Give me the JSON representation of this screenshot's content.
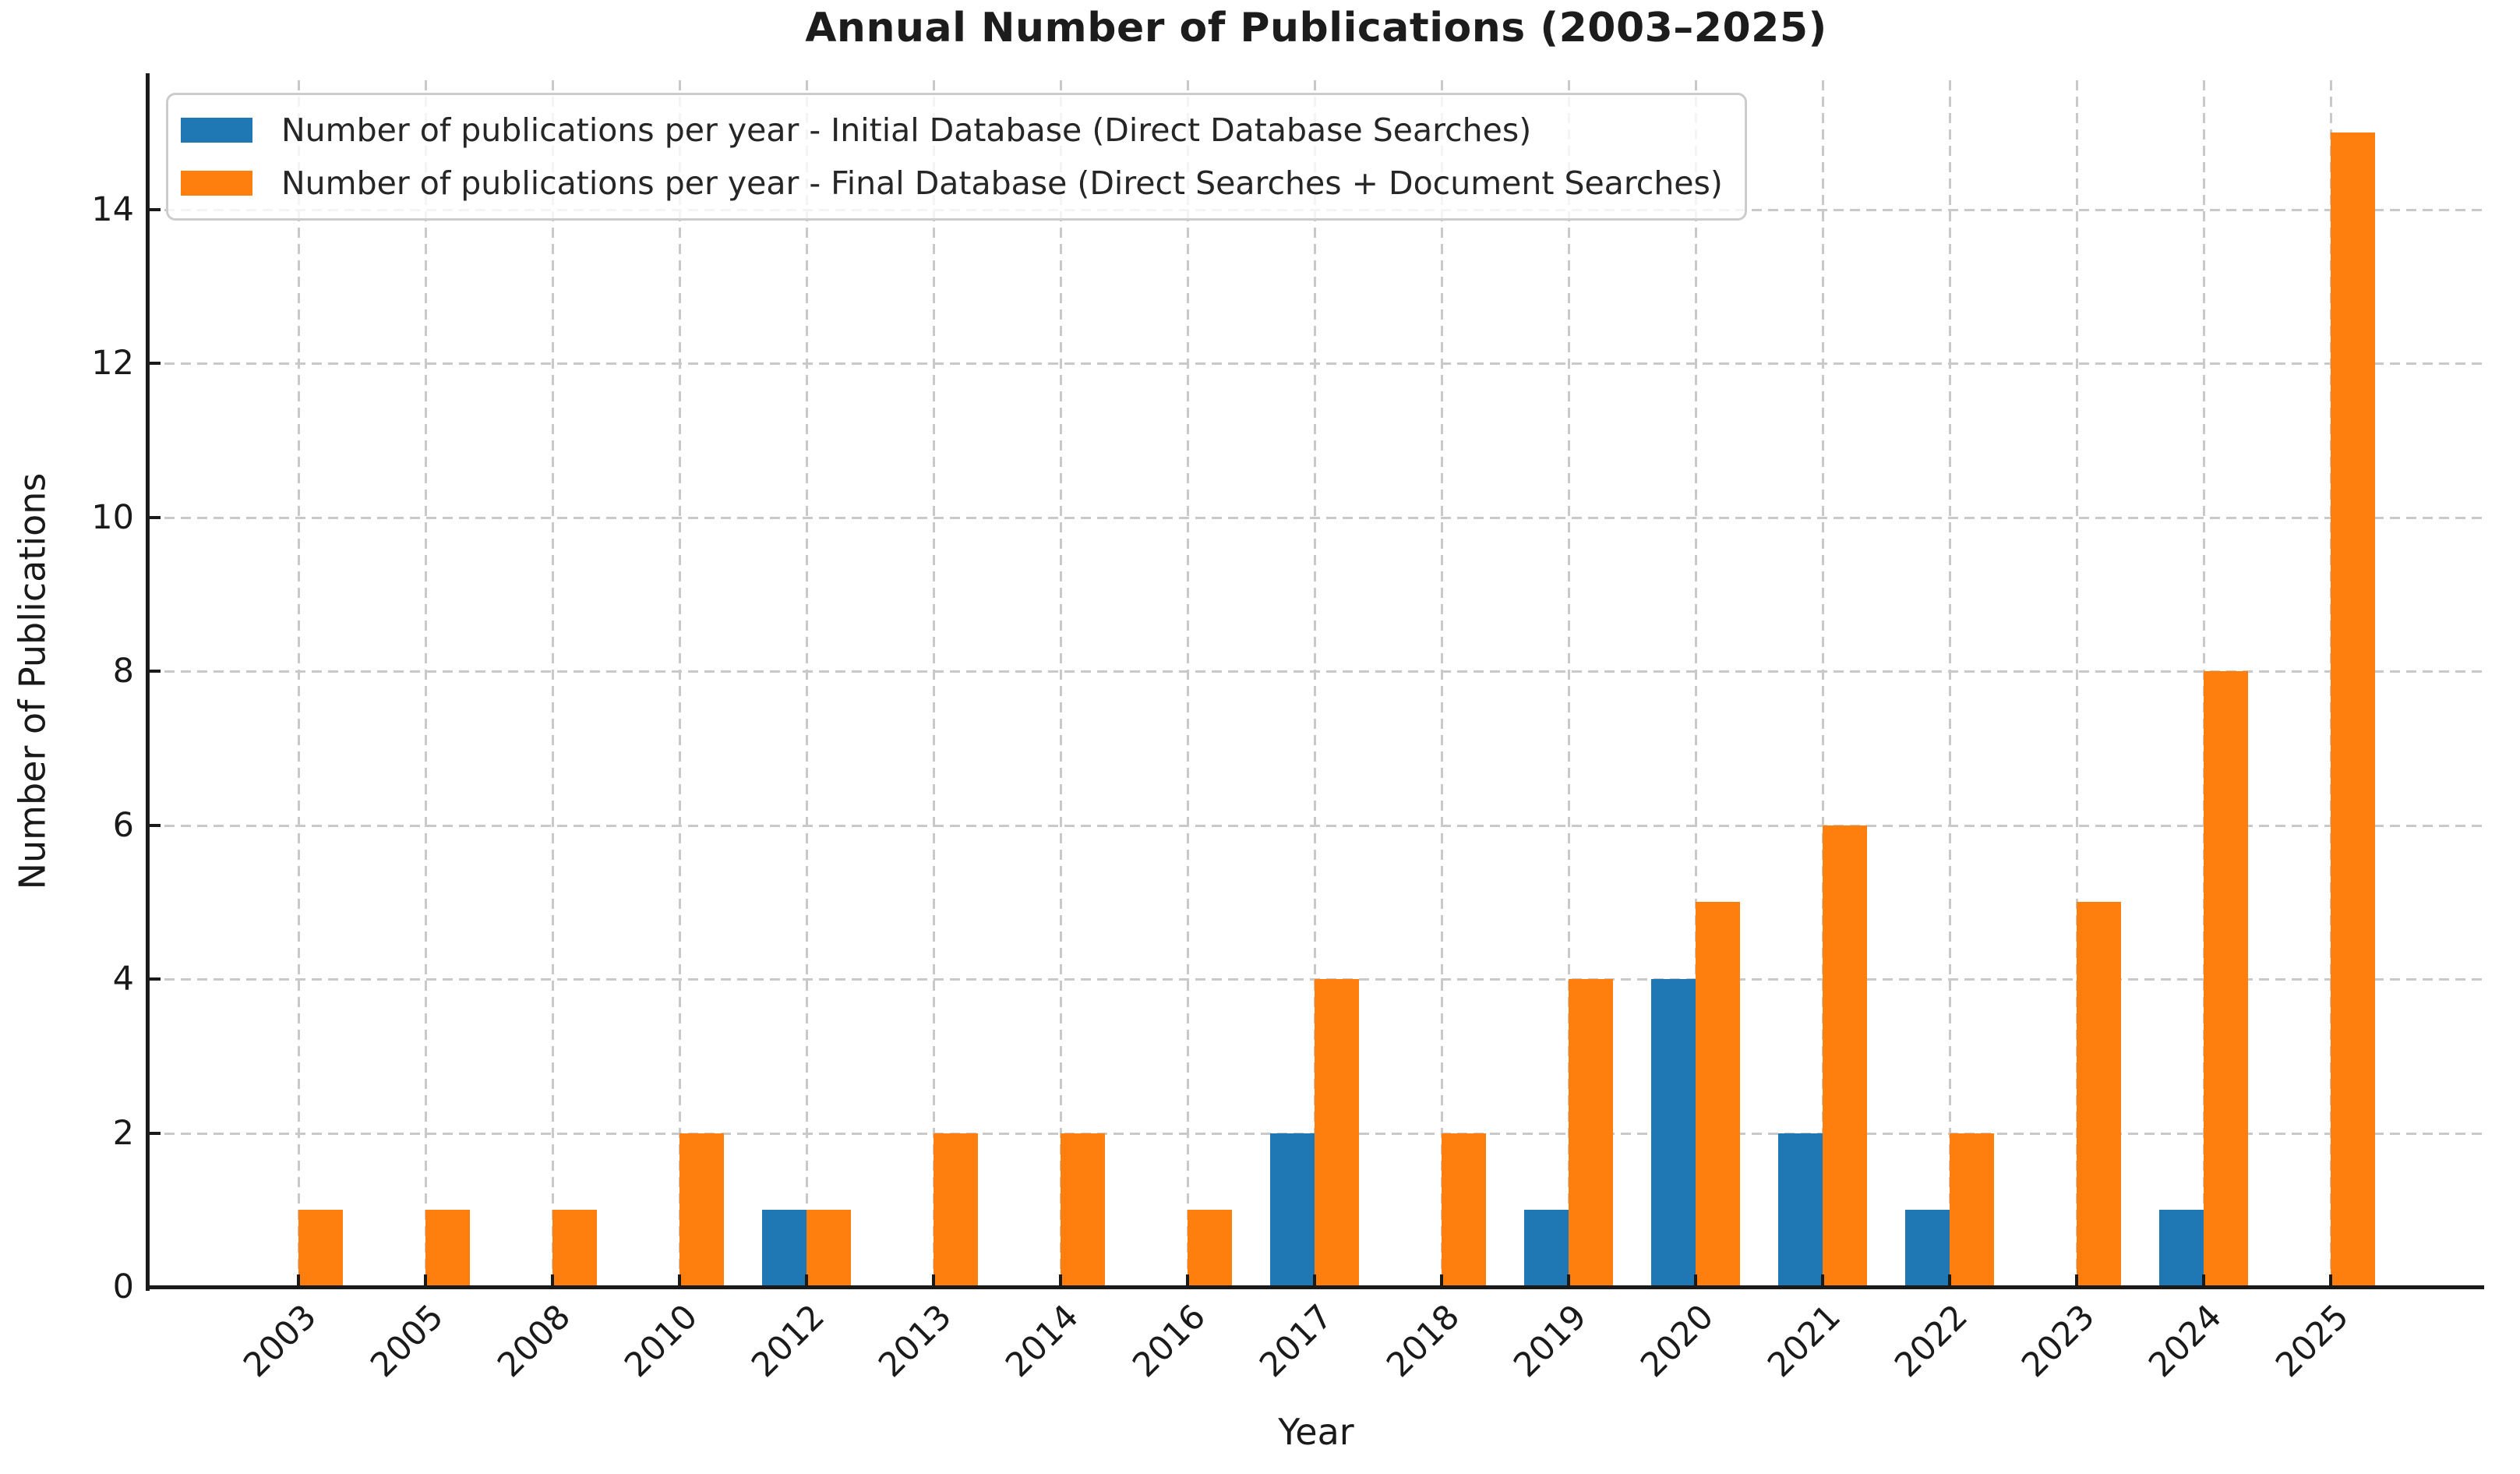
{
  "chart_data": {
    "type": "bar",
    "title": "Annual Number of Publications (2003–2025)",
    "xlabel": "Year",
    "ylabel": "Number of Publications",
    "categories": [
      "2003",
      "2005",
      "2008",
      "2010",
      "2012",
      "2013",
      "2014",
      "2016",
      "2017",
      "2018",
      "2019",
      "2020",
      "2021",
      "2022",
      "2023",
      "2024",
      "2025"
    ],
    "series": [
      {
        "name": "Number of publications per year - Initial Database (Direct Database Searches)",
        "color": "#1f77b4",
        "values": [
          0,
          0,
          0,
          0,
          1,
          0,
          0,
          0,
          2,
          0,
          1,
          4,
          2,
          1,
          0,
          1,
          0
        ]
      },
      {
        "name": "Number of publications per year - Final Database (Direct Searches + Document Searches)",
        "color": "#ff7f0e",
        "values": [
          1,
          1,
          1,
          2,
          1,
          2,
          2,
          1,
          4,
          2,
          4,
          5,
          6,
          2,
          5,
          8,
          15
        ]
      }
    ],
    "yticks": [
      0,
      2,
      4,
      6,
      8,
      10,
      12,
      14
    ],
    "ylim": [
      0,
      15.75
    ],
    "grid": true,
    "grid_color": "#c9c9c9",
    "legend_position": "upper left",
    "x_tick_rotation_deg": 45
  }
}
